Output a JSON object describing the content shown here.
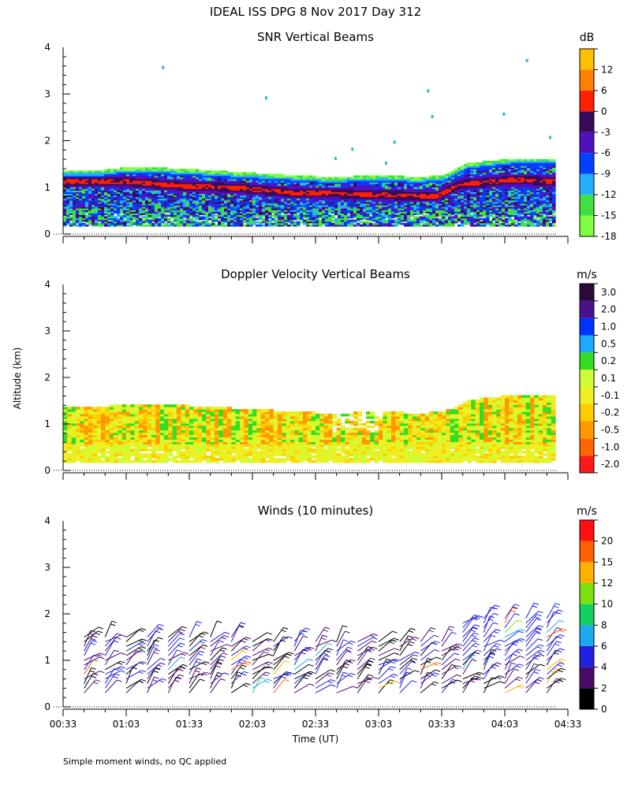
{
  "figure": {
    "title": "IDEAL ISS DPG    8 Nov 2017 Day 312",
    "xlabel": "Time (UT)",
    "ylabel": "Altitude (km)",
    "footnote": "Simple moment winds, no QC applied"
  },
  "chart_data": [
    {
      "type": "heatmap",
      "title": "SNR Vertical Beams",
      "colorbar_unit": "dB",
      "colorbar_levels": [
        "-18",
        "-15",
        "-12",
        "-9",
        "-6",
        "-3",
        "0",
        "6",
        "12"
      ],
      "colorbar_colors": [
        "#80ff40",
        "#40e040",
        "#20b0ff",
        "#0040ff",
        "#5010c0",
        "#3a0a5a",
        "#ff2000",
        "#ff8000",
        "#ffc000"
      ],
      "x_ticks": [
        "00:33",
        "01:03",
        "01:33",
        "02:03",
        "02:33",
        "03:03",
        "03:33",
        "04:03",
        "04:33"
      ],
      "xlim_minutes": [
        33,
        273
      ],
      "y_ticks": [
        "0",
        "1",
        "2",
        "3",
        "4"
      ],
      "ylim_km": [
        0,
        4
      ],
      "data_start_minutes": 33,
      "data_end_minutes": 266,
      "data_bottom_km": 0.17,
      "top_profile_km": [
        [
          33,
          1.35
        ],
        [
          50,
          1.35
        ],
        [
          60,
          1.4
        ],
        [
          80,
          1.4
        ],
        [
          100,
          1.35
        ],
        [
          120,
          1.3
        ],
        [
          140,
          1.25
        ],
        [
          160,
          1.2
        ],
        [
          185,
          1.25
        ],
        [
          200,
          1.2
        ],
        [
          214,
          1.25
        ],
        [
          225,
          1.5
        ],
        [
          245,
          1.6
        ],
        [
          266,
          1.6
        ]
      ],
      "bright_layer_km": [
        [
          33,
          1.12
        ],
        [
          60,
          1.12
        ],
        [
          90,
          1.02
        ],
        [
          115,
          0.98
        ],
        [
          140,
          0.88
        ],
        [
          170,
          0.85
        ],
        [
          190,
          0.82
        ],
        [
          210,
          0.8
        ],
        [
          220,
          1.05
        ],
        [
          245,
          1.15
        ],
        [
          266,
          1.12
        ]
      ]
    },
    {
      "type": "heatmap",
      "title": "Doppler Velocity Vertical Beams",
      "colorbar_unit": "m/s",
      "colorbar_levels": [
        "-2.0",
        "-1.0",
        "-0.5",
        "-0.2",
        "-0.1",
        "0.1",
        "0.2",
        "0.5",
        "1.0",
        "2.0",
        "3.0"
      ],
      "colorbar_colors": [
        "#ff1a1a",
        "#ff6600",
        "#ff9900",
        "#ffcc00",
        "#eeee22",
        "#ccff33",
        "#33dd22",
        "#1aaaff",
        "#0033ff",
        "#4a1090",
        "#2a0a3a"
      ],
      "x_ticks": [
        "00:33",
        "01:03",
        "01:33",
        "02:03",
        "02:33",
        "03:03",
        "03:33",
        "04:03",
        "04:33"
      ],
      "y_ticks": [
        "0",
        "1",
        "2",
        "3",
        "4"
      ],
      "ylim_km": [
        0,
        4
      ]
    },
    {
      "type": "scatter",
      "title": "Winds (10 minutes)",
      "colorbar_unit": "m/s",
      "colorbar_levels": [
        "0",
        "2",
        "4",
        "6",
        "8",
        "10",
        "12",
        "15",
        "20"
      ],
      "colorbar_colors": [
        "#000000",
        "#4a0a6a",
        "#2020e0",
        "#1aaaee",
        "#10d060",
        "#7ce010",
        "#ffb000",
        "#ff6000",
        "#ff1010"
      ],
      "x_ticks": [
        "00:33",
        "01:03",
        "01:33",
        "02:03",
        "02:33",
        "03:03",
        "03:33",
        "04:03",
        "04:33"
      ],
      "y_ticks": [
        "0",
        "1",
        "2",
        "3",
        "4"
      ],
      "ylim_km": [
        0,
        4
      ],
      "profile_times_min": [
        43,
        53,
        63,
        73,
        83,
        93,
        103,
        113,
        123,
        133,
        143,
        153,
        163,
        173,
        183,
        193,
        203,
        213,
        223,
        233,
        243,
        253,
        263
      ]
    }
  ]
}
